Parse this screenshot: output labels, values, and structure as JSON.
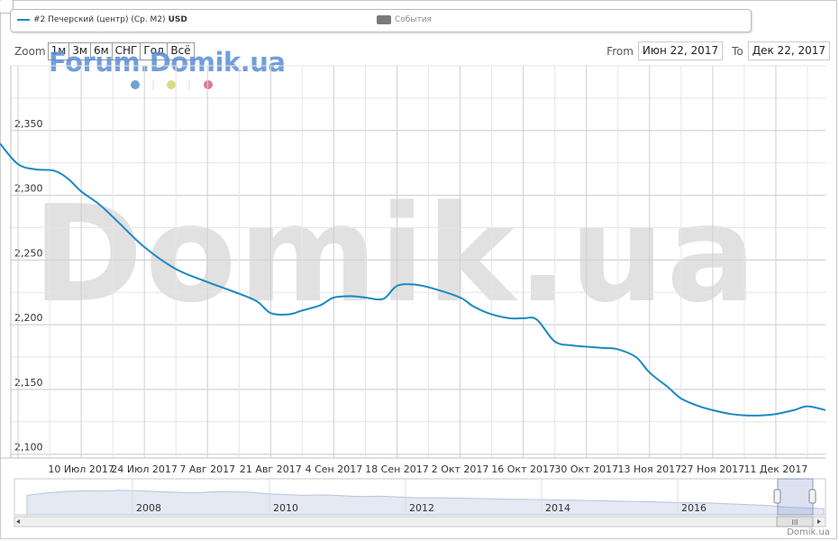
{
  "legend": {
    "series_label": "#2 Печерский (центр) (Ср. М2)",
    "series_unit": "USD",
    "events_label": "События"
  },
  "zoom": {
    "label": "Zoom",
    "buttons": [
      "1м",
      "3м",
      "6м",
      "СНГ",
      "Год",
      "Всё"
    ]
  },
  "range": {
    "from_label": "From",
    "from_value": "Июн 22, 2017",
    "to_label": "To",
    "to_value": "Дек 22, 2017"
  },
  "watermarks": {
    "forum": "Forum.Domik.ua",
    "big": "Domik.ua"
  },
  "credit": "Domik.ua",
  "colors": {
    "series": "#1a8ac4",
    "grid": "#d8d8d8",
    "navigator_fill": "#e4e9f4",
    "dots": [
      "#6fa0d8",
      "#d8dc84",
      "#d97a9a"
    ]
  },
  "chart_data": {
    "type": "line",
    "x": [
      "2017-06-22",
      "2017-06-26",
      "2017-06-30",
      "2017-07-04",
      "2017-07-07",
      "2017-07-10",
      "2017-07-14",
      "2017-07-18",
      "2017-07-24",
      "2017-07-31",
      "2017-08-07",
      "2017-08-14",
      "2017-08-18",
      "2017-08-21",
      "2017-08-25",
      "2017-08-28",
      "2017-09-01",
      "2017-09-04",
      "2017-09-08",
      "2017-09-11",
      "2017-09-15",
      "2017-09-18",
      "2017-09-22",
      "2017-09-26",
      "2017-10-02",
      "2017-10-05",
      "2017-10-09",
      "2017-10-13",
      "2017-10-16",
      "2017-10-19",
      "2017-10-23",
      "2017-10-27",
      "2017-10-30",
      "2017-11-03",
      "2017-11-06",
      "2017-11-10",
      "2017-11-13",
      "2017-11-17",
      "2017-11-20",
      "2017-11-24",
      "2017-11-27",
      "2017-12-01",
      "2017-12-04",
      "2017-12-08",
      "2017-12-11",
      "2017-12-15",
      "2017-12-18",
      "2017-12-22"
    ],
    "series": [
      {
        "name": "#2 Печерский (центр) (Ср. М2)",
        "values": [
          2340,
          2324,
          2320,
          2319,
          2313,
          2303,
          2293,
          2280,
          2260,
          2243,
          2233,
          2224,
          2218,
          2209,
          2208,
          2211,
          2215,
          2221,
          2222,
          2221,
          2220,
          2230,
          2231,
          2228,
          2221,
          2214,
          2208,
          2205,
          2205,
          2204,
          2187,
          2184,
          2183,
          2182,
          2181,
          2175,
          2163,
          2152,
          2143,
          2137,
          2134,
          2131,
          2130,
          2130,
          2131,
          2134,
          2137,
          2134
        ]
      }
    ],
    "x_ticks": [
      "10 Июл 2017",
      "24 Июл 2017",
      "7 Авг 2017",
      "21 Авг 2017",
      "4 Сен 2017",
      "18 Сен 2017",
      "2 Окт 2017",
      "16 Окт 2017",
      "30 Окт 2017",
      "13 Ноя 2017",
      "27 Ноя 2017",
      "11 Дек 2017"
    ],
    "y_ticks": [
      2100,
      2150,
      2200,
      2250,
      2300,
      2350
    ],
    "ylim": [
      2097,
      2400
    ],
    "grid": true,
    "legend_position": "top",
    "navigator": {
      "year_labels": [
        "2008",
        "2010",
        "2012",
        "2014",
        "2016"
      ],
      "values": [
        2300,
        2330,
        2350,
        2360,
        2355,
        2365,
        2360,
        2350,
        2340,
        2330,
        2345,
        2350,
        2340,
        2320,
        2310,
        2300,
        2305,
        2295,
        2285,
        2290,
        2280,
        2270,
        2270,
        2265,
        2260,
        2255,
        2250,
        2248,
        2245,
        2240,
        2235,
        2230,
        2225,
        2220,
        2215,
        2210,
        2205,
        2200,
        2190,
        2180,
        2170,
        2150,
        2140,
        2130
      ]
    }
  }
}
